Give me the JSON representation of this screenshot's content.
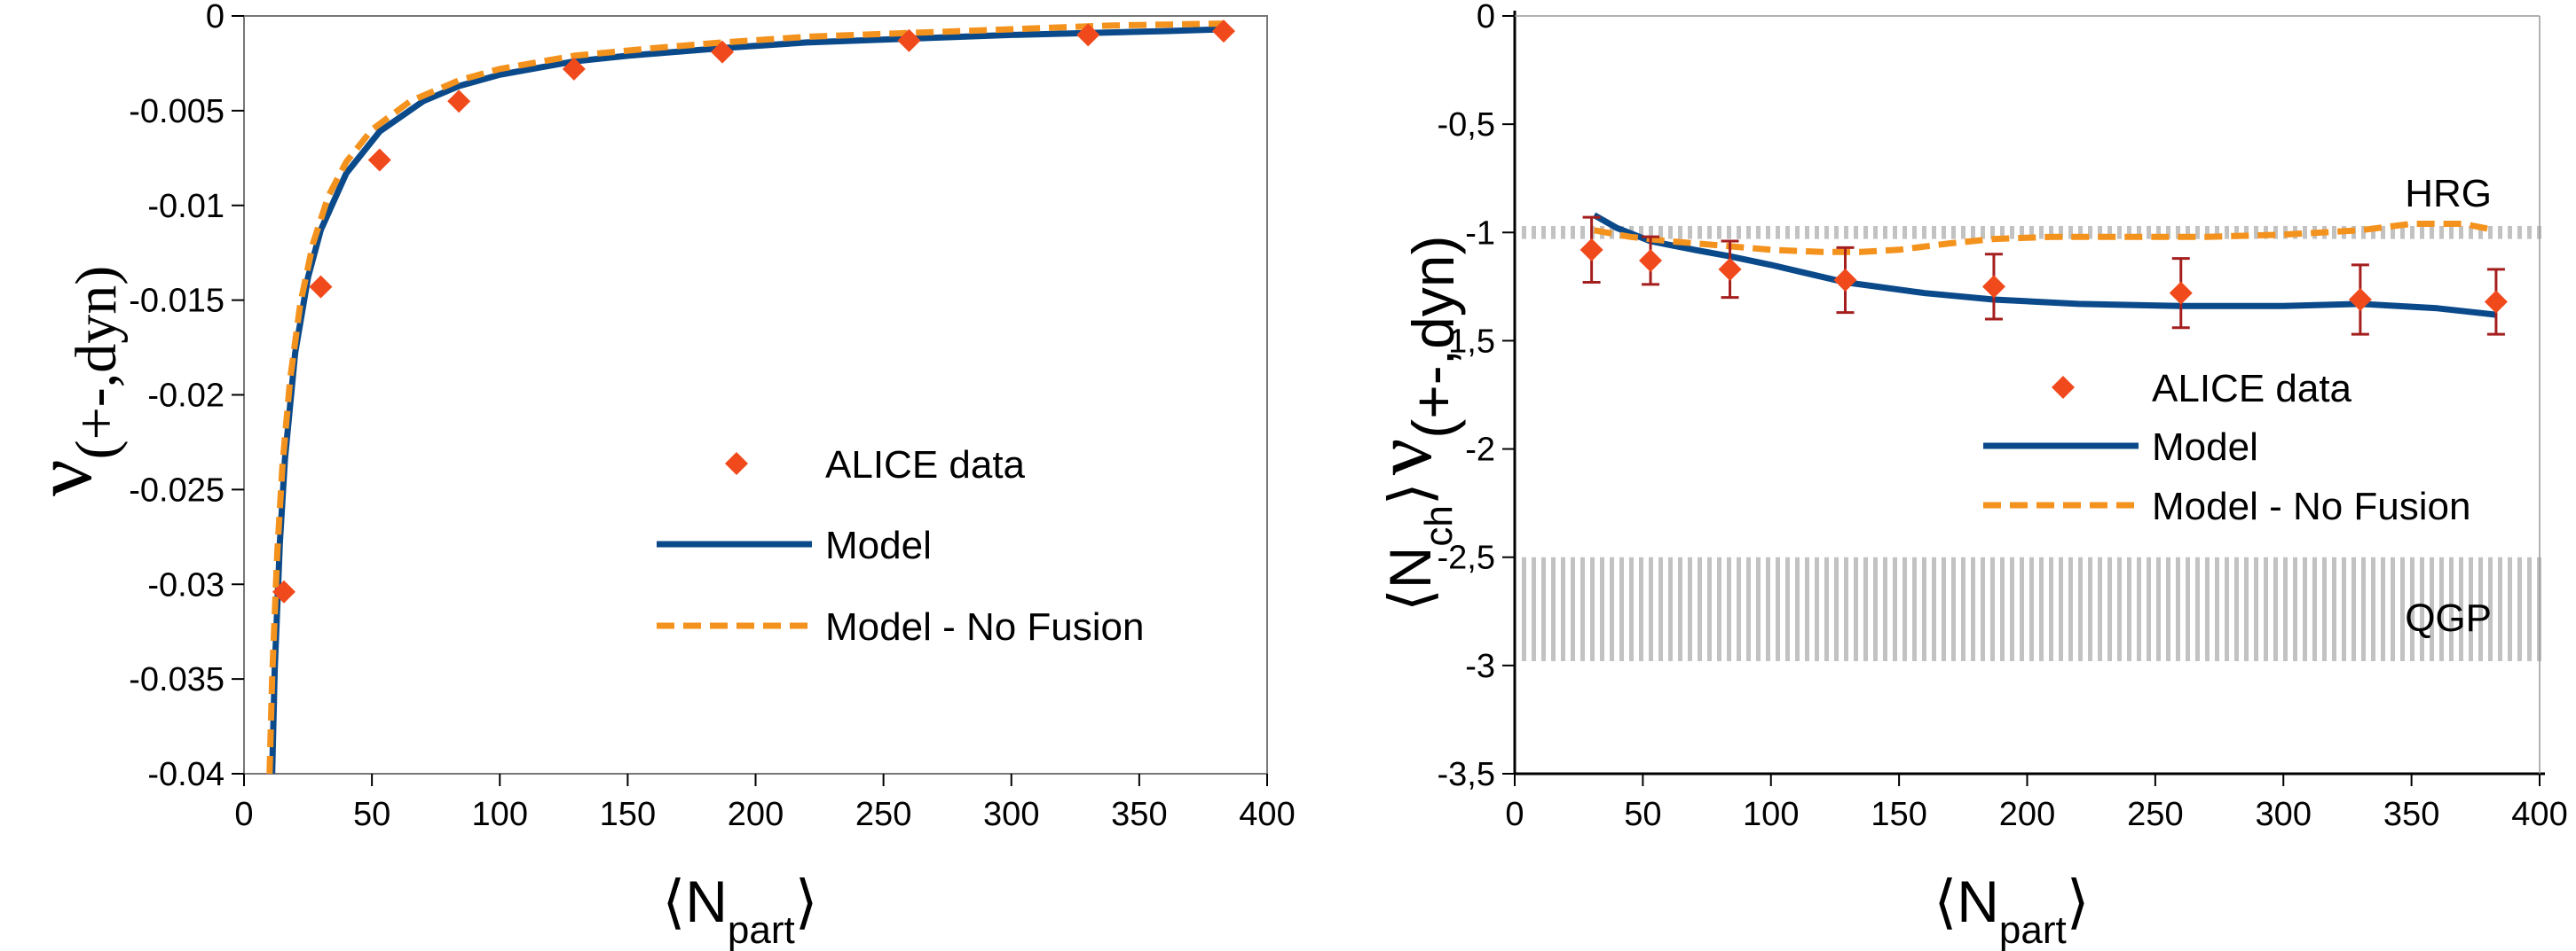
{
  "chart_data": [
    {
      "type": "line",
      "xlim": [
        0,
        400
      ],
      "ylim": [
        -0.04,
        0
      ],
      "x_ticks": [
        0,
        50,
        100,
        150,
        200,
        250,
        300,
        350,
        400
      ],
      "y_ticks": [
        0,
        -0.005,
        -0.01,
        -0.015,
        -0.02,
        -0.025,
        -0.03,
        -0.035,
        -0.04
      ],
      "x_tick_labels": [
        "0",
        "50",
        "100",
        "150",
        "200",
        "250",
        "300",
        "350",
        "400"
      ],
      "y_tick_labels": [
        "0",
        "-0.005",
        "-0.01",
        "-0.015",
        "-0.02",
        "-0.025",
        "-0.03",
        "-0.035",
        "-0.04"
      ],
      "xlabel": {
        "main": "N",
        "sub": "part",
        "open": "⟨",
        "close": "⟩"
      },
      "ylabel": {
        "main": "ν",
        "sub": "(+-,dyn)"
      },
      "grid": false,
      "legend_position": "center-right",
      "series": [
        {
          "name": "ALICE data",
          "kind": "scatter",
          "marker": "diamond",
          "color": "#f04a1c",
          "x": [
            15.6,
            30,
            53,
            84,
            129,
            187,
            260,
            330,
            383
          ],
          "y": [
            -0.0304,
            -0.0143,
            -0.0076,
            -0.0045,
            -0.0028,
            -0.0019,
            -0.0013,
            -0.001,
            -0.0008
          ]
        },
        {
          "name": "Model",
          "kind": "line",
          "style": "solid",
          "color": "#0b4a8a",
          "x": [
            11,
            12,
            14,
            16,
            20,
            25,
            30,
            40,
            53,
            70,
            84,
            100,
            129,
            150,
            187,
            220,
            260,
            300,
            330,
            360,
            383
          ],
          "y": [
            -0.04,
            -0.0345,
            -0.0278,
            -0.0234,
            -0.0178,
            -0.0138,
            -0.0113,
            -0.0083,
            -0.0061,
            -0.0045,
            -0.0037,
            -0.0031,
            -0.0024,
            -0.0021,
            -0.0017,
            -0.0014,
            -0.0012,
            -0.001,
            -0.0009,
            -0.0008,
            -0.0007
          ]
        },
        {
          "name": "Model - No Fusion",
          "kind": "line",
          "style": "dashed",
          "color": "#f4921e",
          "x": [
            10,
            11,
            13,
            15,
            18,
            22,
            27,
            33,
            40,
            50,
            65,
            84,
            100,
            129,
            160,
            187,
            220,
            260,
            300,
            340,
            383
          ],
          "y": [
            -0.04,
            -0.0349,
            -0.0283,
            -0.0238,
            -0.0192,
            -0.0152,
            -0.012,
            -0.0095,
            -0.0077,
            -0.006,
            -0.0045,
            -0.0034,
            -0.0028,
            -0.0021,
            -0.0017,
            -0.0014,
            -0.0011,
            -0.0009,
            -0.0007,
            -0.0005,
            -0.0004
          ]
        }
      ]
    },
    {
      "type": "line",
      "xlim": [
        0,
        400
      ],
      "ylim": [
        -3.5,
        0
      ],
      "x_ticks": [
        0,
        50,
        100,
        150,
        200,
        250,
        300,
        350,
        400
      ],
      "y_ticks": [
        0,
        -0.5,
        -1,
        -1.5,
        -2,
        -2.5,
        -3,
        -3.5
      ],
      "x_tick_labels": [
        "0",
        "50",
        "100",
        "150",
        "200",
        "250",
        "300",
        "350",
        "400"
      ],
      "y_tick_labels": [
        "0",
        "-0,5",
        "-1",
        "-1,5",
        "-2",
        "-2,5",
        "-3",
        "-3,5"
      ],
      "xlabel": {
        "main": "N",
        "sub": "part",
        "open": "⟨",
        "close": "⟩"
      },
      "ylabel": {
        "open": "⟨",
        "n": "N",
        "n_sub": "ch",
        "close": "⟩",
        "nu": "ν",
        "nu_sub": "(+-,dyn)"
      },
      "grid": false,
      "legend_position": "center-right",
      "bands": [
        {
          "label": "HRG",
          "y_range": [
            -1.03,
            -0.97
          ],
          "color": "#c2c2c2"
        },
        {
          "label": "QGP",
          "y_range": [
            -2.98,
            -2.5
          ],
          "color": "#c2c2c2"
        }
      ],
      "series": [
        {
          "name": "ALICE data",
          "kind": "scatter",
          "marker": "diamond",
          "color": "#f04a1c",
          "error_color": "#a51e1e",
          "x": [
            30,
            53,
            84,
            129,
            187,
            260,
            330,
            383
          ],
          "y": [
            -1.08,
            -1.13,
            -1.17,
            -1.22,
            -1.25,
            -1.28,
            -1.31,
            -1.32
          ],
          "yerr": [
            0.15,
            0.11,
            0.13,
            0.15,
            0.15,
            0.16,
            0.16,
            0.15
          ]
        },
        {
          "name": "Model",
          "kind": "line",
          "style": "solid",
          "color": "#0b4a8a",
          "x": [
            31,
            40,
            53,
            70,
            84,
            100,
            129,
            160,
            187,
            220,
            260,
            300,
            330,
            360,
            383
          ],
          "y": [
            -0.92,
            -0.98,
            -1.04,
            -1.08,
            -1.11,
            -1.15,
            -1.23,
            -1.28,
            -1.31,
            -1.33,
            -1.34,
            -1.34,
            -1.33,
            -1.35,
            -1.38
          ]
        },
        {
          "name": "Model -  No Fusion",
          "kind": "line",
          "style": "dashed",
          "color": "#f4921e",
          "x": [
            31,
            45,
            60,
            80,
            100,
            120,
            135,
            150,
            170,
            187,
            210,
            240,
            270,
            300,
            330,
            350,
            370,
            383
          ],
          "y": [
            -0.99,
            -1.02,
            -1.04,
            -1.06,
            -1.08,
            -1.09,
            -1.09,
            -1.08,
            -1.05,
            -1.03,
            -1.02,
            -1.02,
            -1.02,
            -1.01,
            -0.99,
            -0.96,
            -0.96,
            -0.99
          ]
        }
      ]
    }
  ]
}
